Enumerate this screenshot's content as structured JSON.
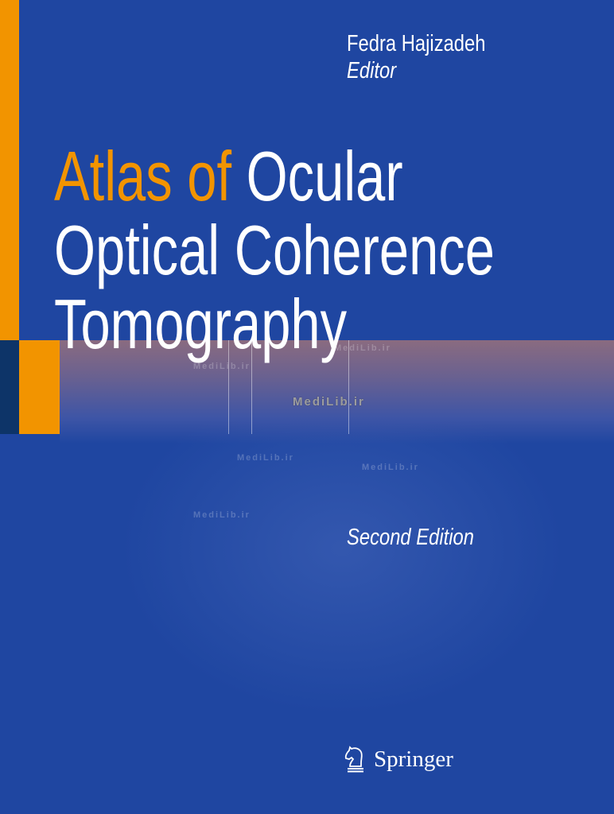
{
  "cover": {
    "editor_name": "Fedra Hajizadeh",
    "editor_role": "Editor",
    "title_accent": "Atlas of",
    "title_line1_rest": "Ocular",
    "title_line2": "Optical Coherence",
    "title_line3": "Tomography",
    "edition": "Second Edition",
    "publisher": "Springer",
    "publisher_logo_icon": "chess-knight-icon"
  },
  "watermarks": [
    "MediLib.ir",
    "MediLib.ir",
    "MediLib.ir",
    "MediLib.ir",
    "MediLib.ir",
    "MediLib.ir"
  ],
  "colors": {
    "background": "#1f46a1",
    "accent": "#f29400",
    "navy": "#0d3468",
    "band": "#8a6b80"
  }
}
